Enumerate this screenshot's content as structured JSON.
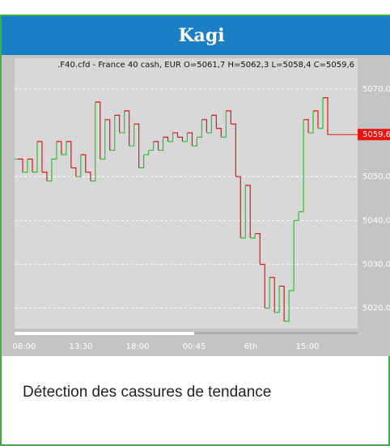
{
  "header": "Kagi",
  "caption": "Détection des cassures de tendance",
  "chart_data": {
    "type": "kagi",
    "title": ".F40.cfd - France 40 cash, EUR O=5061,7 H=5062,3 L=5058,4 C=5059,6",
    "values": [
      5054,
      5051,
      5054,
      5051,
      5058,
      5051,
      5049,
      5054,
      5058,
      5055,
      5058,
      5052,
      5050,
      5055,
      5051,
      5049,
      5067,
      5054,
      5063,
      5056,
      5064,
      5060,
      5065,
      5057,
      5062,
      5052,
      5055,
      5056,
      5058,
      5056,
      5059,
      5058,
      5060,
      5059,
      5058,
      5060,
      5057,
      5059,
      5063,
      5060,
      5064,
      5061,
      5059,
      5065,
      5062,
      5050,
      5036,
      5048,
      5036,
      5037,
      5030,
      5020,
      5027,
      5019,
      5025,
      5017,
      5024,
      5040,
      5042,
      5063,
      5060,
      5065,
      5061,
      5068,
      5059.6
    ],
    "colors": {
      "up": "#22cc22",
      "down": "#ee1111"
    },
    "ylim": [
      5015.5,
      5077
    ],
    "yticks": [
      {
        "value": 5020,
        "label": "5020,0"
      },
      {
        "value": 5030,
        "label": "5030,0"
      },
      {
        "value": 5040,
        "label": "5040,0"
      },
      {
        "value": 5050,
        "label": "5050,0"
      },
      {
        "value": 5070,
        "label": "5070,0"
      }
    ],
    "last_price": {
      "value": 5059.6,
      "label": "5059,6"
    },
    "xlabels": [
      "08:00",
      "13:30",
      "18:00",
      "00:45",
      "6th",
      "15:00"
    ],
    "grid": true
  }
}
